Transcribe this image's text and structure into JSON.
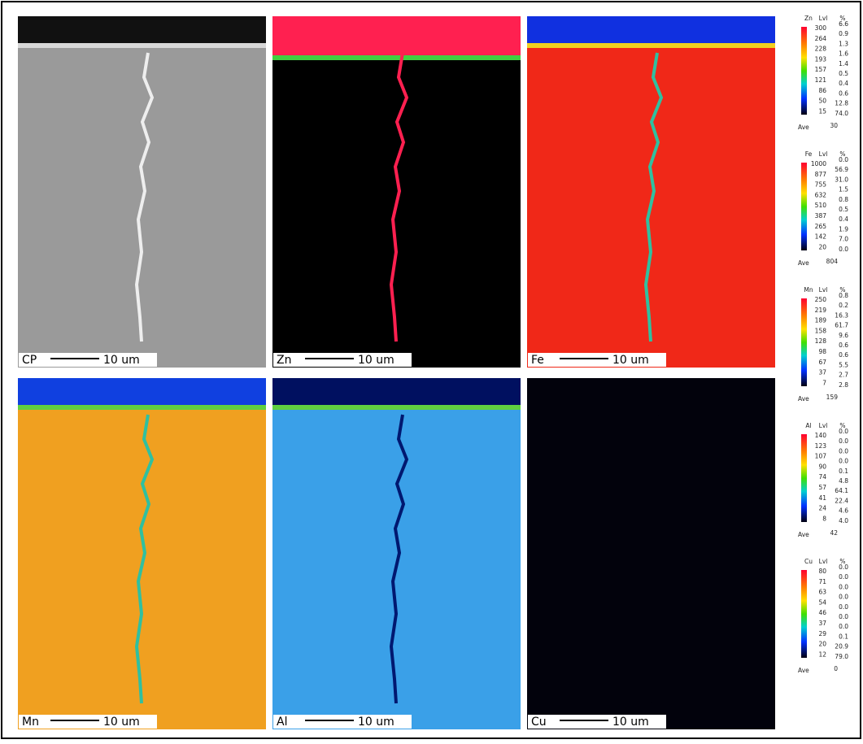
{
  "panels": [
    {
      "label": "CP",
      "scale": "10 um"
    },
    {
      "label": "Zn",
      "scale": "10 um"
    },
    {
      "label": "Fe",
      "scale": "10 um"
    },
    {
      "label": "Mn",
      "scale": "10 um"
    },
    {
      "label": "Al",
      "scale": "10 um"
    },
    {
      "label": "Cu",
      "scale": "10 um"
    }
  ],
  "legends": [
    {
      "element": "Zn",
      "lvl_header": "Lvl",
      "pct_header": "%",
      "levels": [
        "300",
        "264",
        "228",
        "193",
        "157",
        "121",
        "86",
        "50",
        "15"
      ],
      "percents": [
        "6.6",
        "0.9",
        "1.3",
        "1.6",
        "1.4",
        "0.5",
        "0.4",
        "0.6",
        "12.8",
        "74.0"
      ],
      "ave_label": "Ave",
      "ave": "30"
    },
    {
      "element": "Fe",
      "lvl_header": "Lvl",
      "pct_header": "%",
      "levels": [
        "1000",
        "877",
        "755",
        "632",
        "510",
        "387",
        "265",
        "142",
        "20"
      ],
      "percents": [
        "0.0",
        "56.9",
        "31.0",
        "1.5",
        "0.8",
        "0.5",
        "0.4",
        "1.9",
        "7.0",
        "0.0"
      ],
      "ave_label": "Ave",
      "ave": "804"
    },
    {
      "element": "Mn",
      "lvl_header": "Lvl",
      "pct_header": "%",
      "levels": [
        "250",
        "219",
        "189",
        "158",
        "128",
        "98",
        "67",
        "37",
        "7"
      ],
      "percents": [
        "0.8",
        "0.2",
        "16.3",
        "61.7",
        "9.6",
        "0.6",
        "0.6",
        "5.5",
        "2.7",
        "2.8"
      ],
      "ave_label": "Ave",
      "ave": "159"
    },
    {
      "element": "Al",
      "lvl_header": "Lvl",
      "pct_header": "%",
      "levels": [
        "140",
        "123",
        "107",
        "90",
        "74",
        "57",
        "41",
        "24",
        "8"
      ],
      "percents": [
        "0.0",
        "0.0",
        "0.0",
        "0.0",
        "0.1",
        "4.8",
        "64.1",
        "22.4",
        "4.6",
        "4.0"
      ],
      "ave_label": "Ave",
      "ave": "42"
    },
    {
      "element": "Cu",
      "lvl_header": "Lvl",
      "pct_header": "%",
      "levels": [
        "80",
        "71",
        "63",
        "54",
        "46",
        "37",
        "29",
        "20",
        "12"
      ],
      "percents": [
        "0.0",
        "0.0",
        "0.0",
        "0.0",
        "0.0",
        "0.0",
        "0.0",
        "0.1",
        "20.9",
        "79.0"
      ],
      "ave_label": "Ave",
      "ave": "0"
    }
  ]
}
